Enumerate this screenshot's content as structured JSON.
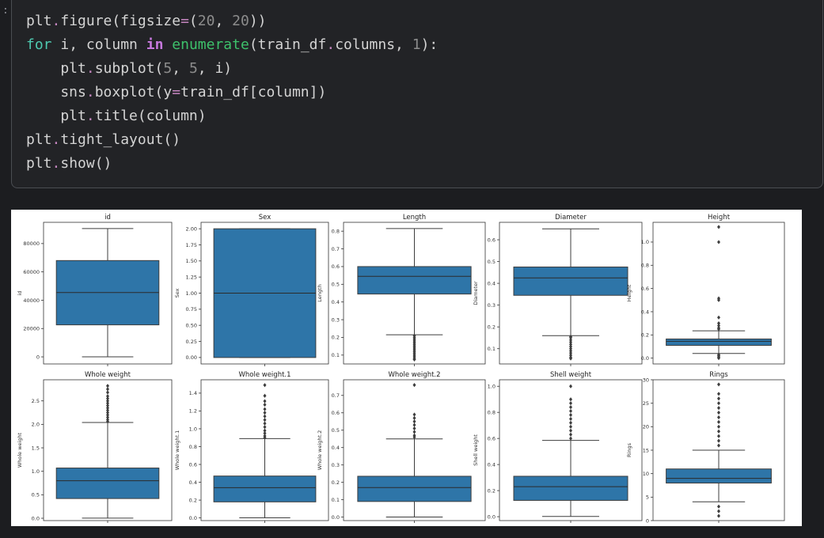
{
  "cell": {
    "gutter_marker": ":",
    "code_lines": [
      [
        [
          "plt",
          "plain"
        ],
        [
          ".",
          "dot"
        ],
        [
          "figure(figsize",
          "plain"
        ],
        [
          "=",
          "op"
        ],
        [
          "(",
          "plain"
        ],
        [
          "20",
          "num"
        ],
        [
          ", ",
          "plain"
        ],
        [
          "20",
          "num"
        ],
        [
          "))",
          "plain"
        ]
      ],
      [
        [
          "for",
          "kw"
        ],
        [
          " i, column ",
          "plain"
        ],
        [
          "in",
          "in"
        ],
        [
          " ",
          "plain"
        ],
        [
          "enumerate",
          "fn"
        ],
        [
          "(train_df",
          "plain"
        ],
        [
          ".",
          "dot"
        ],
        [
          "columns, ",
          "plain"
        ],
        [
          "1",
          "num"
        ],
        [
          "):",
          "plain"
        ]
      ],
      [
        [
          "    plt",
          "plain"
        ],
        [
          ".",
          "dot"
        ],
        [
          "subplot(",
          "plain"
        ],
        [
          "5",
          "num"
        ],
        [
          ", ",
          "plain"
        ],
        [
          "5",
          "num"
        ],
        [
          ", i)",
          "plain"
        ]
      ],
      [
        [
          "    sns",
          "plain"
        ],
        [
          ".",
          "dot"
        ],
        [
          "boxplot(y",
          "plain"
        ],
        [
          "=",
          "op"
        ],
        [
          "train_df[column])",
          "plain"
        ]
      ],
      [
        [
          "    plt",
          "plain"
        ],
        [
          ".",
          "dot"
        ],
        [
          "title(column)",
          "plain"
        ]
      ],
      [
        [
          "plt",
          "plain"
        ],
        [
          ".",
          "dot"
        ],
        [
          "tight_layout()",
          "plain"
        ]
      ],
      [
        [
          "plt",
          "plain"
        ],
        [
          ".",
          "dot"
        ],
        [
          "show()",
          "plain"
        ]
      ]
    ]
  },
  "colors": {
    "box_fill": "#2e75a8",
    "median_line": "#2b2b2b"
  },
  "chart_data": [
    {
      "type": "box",
      "title": "id",
      "ylabel": "id",
      "ylim": [
        -5000,
        95000
      ],
      "yticks": [
        0,
        20000,
        40000,
        60000,
        80000
      ],
      "ytick_labels": [
        "0",
        "20000",
        "40000",
        "60000",
        "80000"
      ],
      "whisker_low": 0,
      "q1": 22600,
      "median": 45400,
      "q3": 68000,
      "whisker_high": 90600,
      "outliers": []
    },
    {
      "type": "box",
      "title": "Sex",
      "ylabel": "Sex",
      "ylim": [
        -0.1,
        2.1
      ],
      "yticks": [
        0,
        0.25,
        0.5,
        0.75,
        1,
        1.25,
        1.5,
        1.75,
        2
      ],
      "ytick_labels": [
        "0.00",
        "0.25",
        "0.50",
        "0.75",
        "1.00",
        "1.25",
        "1.50",
        "1.75",
        "2.00"
      ],
      "whisker_low": 0,
      "q1": 0,
      "median": 1,
      "q3": 2,
      "whisker_high": 2,
      "outliers": []
    },
    {
      "type": "box",
      "title": "Length",
      "ylabel": "Length",
      "ylim": [
        0.05,
        0.85
      ],
      "yticks": [
        0.1,
        0.2,
        0.3,
        0.4,
        0.5,
        0.6,
        0.7,
        0.8
      ],
      "ytick_labels": [
        "0.1",
        "0.2",
        "0.3",
        "0.4",
        "0.5",
        "0.6",
        "0.7",
        "0.8"
      ],
      "whisker_low": 0.215,
      "q1": 0.445,
      "median": 0.545,
      "q3": 0.6,
      "whisker_high": 0.815,
      "outliers": [
        0.21,
        0.2,
        0.19,
        0.18,
        0.17,
        0.16,
        0.15,
        0.14,
        0.13,
        0.12,
        0.11,
        0.1,
        0.09,
        0.08,
        0.075
      ]
    },
    {
      "type": "box",
      "title": "Diameter",
      "ylabel": "Diameter",
      "ylim": [
        0.03,
        0.68
      ],
      "yticks": [
        0.1,
        0.2,
        0.3,
        0.4,
        0.5,
        0.6
      ],
      "ytick_labels": [
        "0.1",
        "0.2",
        "0.3",
        "0.4",
        "0.5",
        "0.6"
      ],
      "whisker_low": 0.16,
      "q1": 0.345,
      "median": 0.425,
      "q3": 0.475,
      "whisker_high": 0.65,
      "outliers": [
        0.155,
        0.15,
        0.14,
        0.13,
        0.12,
        0.11,
        0.1,
        0.09,
        0.08,
        0.07,
        0.06,
        0.055
      ]
    },
    {
      "type": "box",
      "title": "Height",
      "ylabel": "Height",
      "ylim": [
        -0.05,
        1.17
      ],
      "yticks": [
        0,
        0.2,
        0.4,
        0.6,
        0.8,
        1.0
      ],
      "ytick_labels": [
        "0.0",
        "0.2",
        "0.4",
        "0.6",
        "0.8",
        "1.0"
      ],
      "whisker_low": 0.04,
      "q1": 0.11,
      "median": 0.145,
      "q3": 0.165,
      "whisker_high": 0.235,
      "outliers": [
        1.13,
        1.0,
        0.515,
        0.5,
        0.35,
        0.3,
        0.28,
        0.26,
        0.25,
        0.03,
        0.02,
        0.01,
        0.0
      ]
    },
    {
      "type": "box",
      "title": "Whole weight",
      "ylabel": "Whole weight",
      "ylim": [
        -0.05,
        2.95
      ],
      "yticks": [
        0,
        0.5,
        1,
        1.5,
        2,
        2.5
      ],
      "ytick_labels": [
        "0.0",
        "0.5",
        "1.0",
        "1.5",
        "2.0",
        "2.5"
      ],
      "whisker_low": 0.002,
      "q1": 0.42,
      "median": 0.8,
      "q3": 1.07,
      "whisker_high": 2.04,
      "outliers": [
        2.82,
        2.75,
        2.68,
        2.6,
        2.55,
        2.5,
        2.45,
        2.4,
        2.35,
        2.3,
        2.25,
        2.2,
        2.15,
        2.1,
        2.06
      ]
    },
    {
      "type": "box",
      "title": "Whole weight.1",
      "ylabel": "Whole weight.1",
      "ylim": [
        -0.03,
        1.55
      ],
      "yticks": [
        0,
        0.2,
        0.4,
        0.6,
        0.8,
        1.0,
        1.2,
        1.4
      ],
      "ytick_labels": [
        "0.0",
        "0.2",
        "0.4",
        "0.6",
        "0.8",
        "1.0",
        "1.2",
        "1.4"
      ],
      "whisker_low": 0.001,
      "q1": 0.18,
      "median": 0.34,
      "q3": 0.47,
      "whisker_high": 0.89,
      "outliers": [
        1.49,
        1.37,
        1.31,
        1.27,
        1.22,
        1.18,
        1.14,
        1.1,
        1.06,
        1.02,
        0.98,
        0.95,
        0.92,
        0.9
      ]
    },
    {
      "type": "box",
      "title": "Whole weight.2",
      "ylabel": "Whole weight.2",
      "ylim": [
        -0.02,
        0.79
      ],
      "yticks": [
        0,
        0.1,
        0.2,
        0.3,
        0.4,
        0.5,
        0.6,
        0.7
      ],
      "ytick_labels": [
        "0.0",
        "0.1",
        "0.2",
        "0.3",
        "0.4",
        "0.5",
        "0.6",
        "0.7"
      ],
      "whisker_low": 0.0005,
      "q1": 0.09,
      "median": 0.17,
      "q3": 0.235,
      "whisker_high": 0.45,
      "outliers": [
        0.76,
        0.59,
        0.57,
        0.55,
        0.53,
        0.51,
        0.49,
        0.47,
        0.46
      ]
    },
    {
      "type": "box",
      "title": "Shell weight",
      "ylabel": "Shell weight",
      "ylim": [
        -0.03,
        1.05
      ],
      "yticks": [
        0,
        0.2,
        0.4,
        0.6,
        0.8,
        1.0
      ],
      "ytick_labels": [
        "0.0",
        "0.2",
        "0.4",
        "0.6",
        "0.8",
        "1.0"
      ],
      "whisker_low": 0.002,
      "q1": 0.125,
      "median": 0.23,
      "q3": 0.31,
      "whisker_high": 0.585,
      "outliers": [
        1.0,
        0.9,
        0.87,
        0.84,
        0.81,
        0.78,
        0.75,
        0.72,
        0.69,
        0.66,
        0.63,
        0.6
      ]
    },
    {
      "type": "box",
      "title": "Rings",
      "ylabel": "Rings",
      "ylim": [
        0,
        30
      ],
      "yticks": [
        0,
        5,
        10,
        15,
        20,
        25,
        30
      ],
      "ytick_labels": [
        "0",
        "5",
        "10",
        "15",
        "20",
        "25",
        "30"
      ],
      "whisker_low": 4,
      "q1": 8,
      "median": 9,
      "q3": 11,
      "whisker_high": 15,
      "outliers": [
        29,
        27,
        26,
        25,
        24,
        23,
        22,
        21,
        20,
        19,
        18,
        17,
        16,
        3,
        2,
        1
      ]
    }
  ]
}
